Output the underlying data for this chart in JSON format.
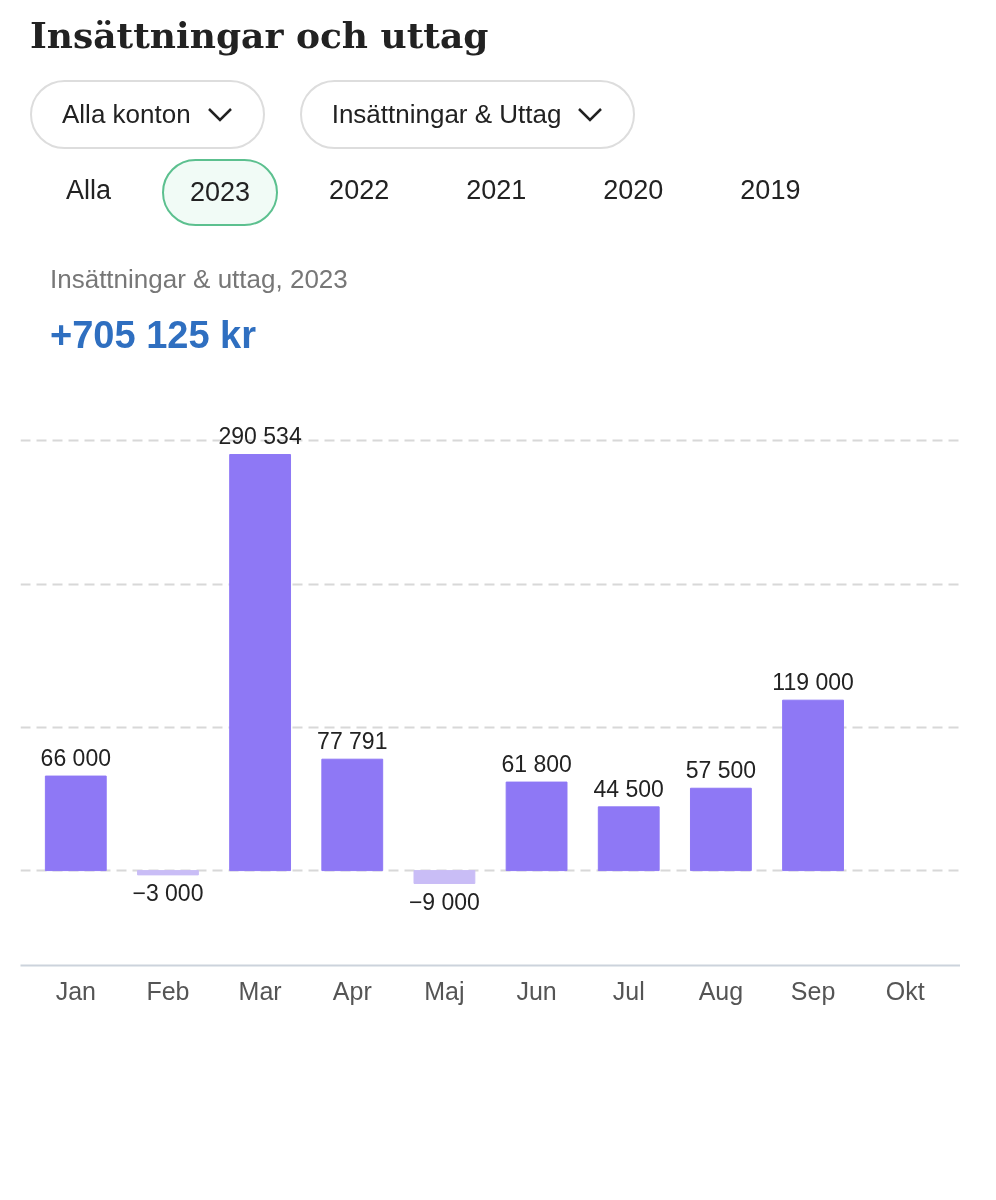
{
  "chart_data": {
    "type": "bar",
    "title": "Insättningar och uttag",
    "subtitle": "Insättningar & uttag, 2023",
    "annotations": [
      "Alla konton",
      "Insättningar & Uttag",
      "Alla",
      "2023",
      "2022",
      "2021",
      "2020",
      "2019",
      "+705 125 kr"
    ],
    "categories": [
      "Jan",
      "Feb",
      "Mar",
      "Apr",
      "Maj",
      "Jun",
      "Jul",
      "Aug",
      "Sep",
      "Okt"
    ],
    "values": [
      66000,
      -3000,
      290534,
      77791,
      -9000,
      61800,
      44500,
      57500,
      119000,
      null
    ],
    "value_labels": [
      "66 000",
      "−3 000",
      "290 534",
      "77 791",
      "−9 000",
      "61 800",
      "44 500",
      "57 500",
      "119 000",
      null
    ],
    "colors": [
      "#8e78f5",
      "#c9bdf6",
      "#8e78f5",
      "#8e78f5",
      "#c9bdf6",
      "#8e78f5",
      "#8e78f5",
      "#8e78f5",
      "#8e78f5",
      "#8e78f5"
    ],
    "tick_labels": "x",
    "grid": "y"
  }
}
